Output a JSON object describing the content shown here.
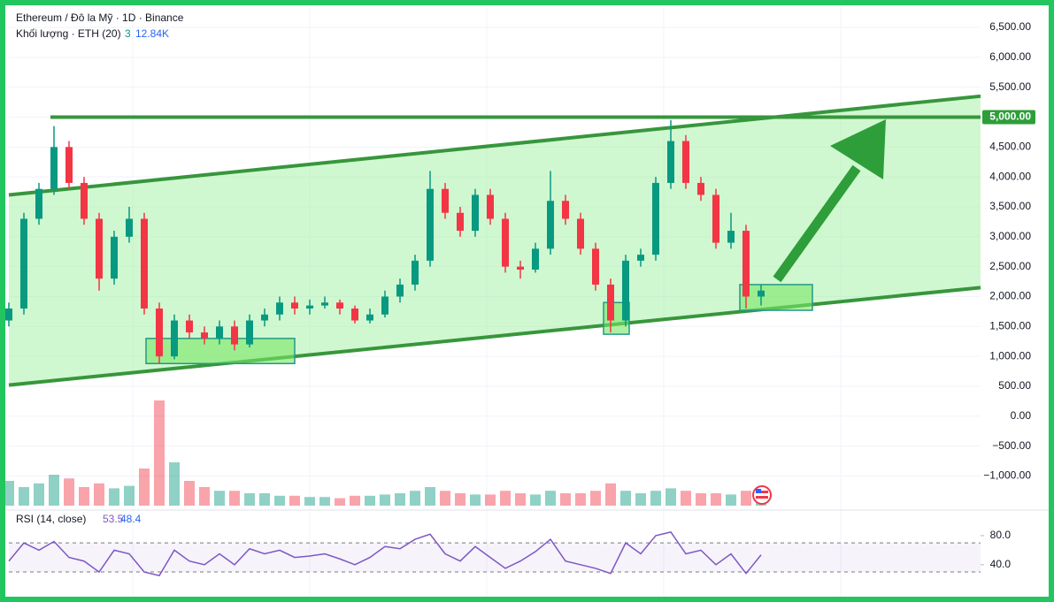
{
  "chart_data": {
    "type": "candlestick",
    "title": "Ethereum / Đô la Mỹ · 1D · Binance",
    "volume_header": {
      "label": "Khối lượng · ETH (20)",
      "count": "3",
      "value": "12.84K"
    },
    "open": [
      1600,
      1800,
      3300,
      3800,
      4500,
      3900,
      3300,
      2300,
      3000,
      3300,
      1800,
      1000,
      1600,
      1400,
      1300,
      1500,
      1200,
      1600,
      1700,
      1900,
      1800,
      1850,
      1900,
      1800,
      1600,
      1700,
      2000,
      2200,
      2600,
      3800,
      3400,
      3100,
      3700,
      3300,
      2500,
      2450,
      2800,
      3600,
      3300,
      2800,
      2200,
      1600,
      2600,
      2700,
      3900,
      4600,
      3900,
      3700,
      2900,
      3100,
      2000
    ],
    "high": [
      1900,
      3400,
      3900,
      4850,
      4600,
      4000,
      3400,
      3100,
      3500,
      3400,
      1900,
      1700,
      1700,
      1500,
      1600,
      1600,
      1700,
      1800,
      2000,
      2000,
      1950,
      2000,
      1950,
      1850,
      1800,
      2100,
      2300,
      2700,
      4100,
      3900,
      3500,
      3800,
      3800,
      3400,
      2600,
      2900,
      4100,
      3700,
      3400,
      2900,
      2300,
      2700,
      2800,
      4000,
      4950,
      4700,
      4000,
      3800,
      3400,
      3200,
      2200
    ],
    "low": [
      1500,
      1700,
      3200,
      3700,
      3800,
      3200,
      2100,
      2200,
      2900,
      1700,
      880,
      950,
      1300,
      1200,
      1200,
      1100,
      1150,
      1500,
      1600,
      1700,
      1700,
      1800,
      1700,
      1550,
      1550,
      1650,
      1900,
      2100,
      2500,
      3300,
      3000,
      3000,
      3200,
      2400,
      2300,
      2400,
      2700,
      3200,
      2700,
      2100,
      1400,
      1500,
      2500,
      2600,
      3800,
      3800,
      3600,
      2800,
      2800,
      1800,
      1850
    ],
    "close": [
      1800,
      3300,
      3800,
      4500,
      3900,
      3300,
      2300,
      3000,
      3300,
      1800,
      1000,
      1600,
      1400,
      1300,
      1500,
      1200,
      1600,
      1700,
      1900,
      1800,
      1850,
      1900,
      1800,
      1600,
      1700,
      2000,
      2200,
      2600,
      3800,
      3400,
      3100,
      3700,
      3300,
      2500,
      2450,
      2800,
      3600,
      3300,
      2800,
      2200,
      1600,
      2600,
      2700,
      3900,
      4600,
      3900,
      3700,
      2900,
      3100,
      2000,
      2100
    ],
    "up_color": "#089981",
    "down_color": "#f23645",
    "volume": [
      20,
      15,
      18,
      25,
      22,
      15,
      18,
      14,
      16,
      30,
      85,
      35,
      20,
      15,
      12,
      12,
      10,
      10,
      8,
      8,
      7,
      7,
      6,
      8,
      8,
      9,
      10,
      12,
      15,
      12,
      10,
      9,
      9,
      12,
      10,
      9,
      12,
      10,
      10,
      12,
      18,
      12,
      10,
      12,
      14,
      12,
      10,
      10,
      9,
      12,
      14
    ],
    "volume_lim": [
      0,
      100
    ],
    "ylim": [
      -1540,
      6840
    ],
    "yticks": [
      {
        "value": -1000,
        "label": "−1,000.00"
      },
      {
        "value": -500,
        "label": "−500.00"
      },
      {
        "value": 0,
        "label": "0.00"
      },
      {
        "value": 500,
        "label": "500.00"
      },
      {
        "value": 1000,
        "label": "1,000.00"
      },
      {
        "value": 1500,
        "label": "1,500.00"
      },
      {
        "value": 2000,
        "label": "2,000.00"
      },
      {
        "value": 2500,
        "label": "2,500.00"
      },
      {
        "value": 3000,
        "label": "3,000.00"
      },
      {
        "value": 3500,
        "label": "3,500.00"
      },
      {
        "value": 4000,
        "label": "4,000.00"
      },
      {
        "value": 4500,
        "label": "4,500.00"
      },
      {
        "value": 5000,
        "label": "5,000.00"
      },
      {
        "value": 5500,
        "label": "5,500.00"
      },
      {
        "value": 6000,
        "label": "6,000.00"
      },
      {
        "value": 6500,
        "label": "6,500.00"
      }
    ],
    "hline": 5000,
    "channel": {
      "upper": [
        3700,
        5350
      ],
      "lower": [
        520,
        2150
      ]
    },
    "boxes": [
      {
        "top": 1300,
        "bottom": 880
      },
      {
        "top": 1900,
        "bottom": 1370
      },
      {
        "top": 2200,
        "bottom": 1770
      }
    ],
    "rsi_header": {
      "label": "RSI (14, close)",
      "value": "53.5",
      "ma": "48.4"
    },
    "rsi": [
      45,
      70,
      60,
      72,
      50,
      45,
      30,
      60,
      55,
      30,
      25,
      60,
      45,
      40,
      55,
      40,
      62,
      55,
      60,
      50,
      52,
      55,
      48,
      40,
      50,
      65,
      62,
      75,
      82,
      55,
      45,
      65,
      50,
      35,
      45,
      58,
      75,
      45,
      40,
      35,
      28,
      70,
      55,
      80,
      85,
      55,
      60,
      40,
      55,
      28,
      53.5
    ],
    "rsi_color": "#7e57c2",
    "rsi_lim": [
      -4,
      114
    ],
    "rsi_ticks": [
      {
        "value": 40,
        "label": "40.0"
      },
      {
        "value": 80,
        "label": "80.0"
      }
    ],
    "rsi_bands": [
      30,
      70
    ]
  }
}
